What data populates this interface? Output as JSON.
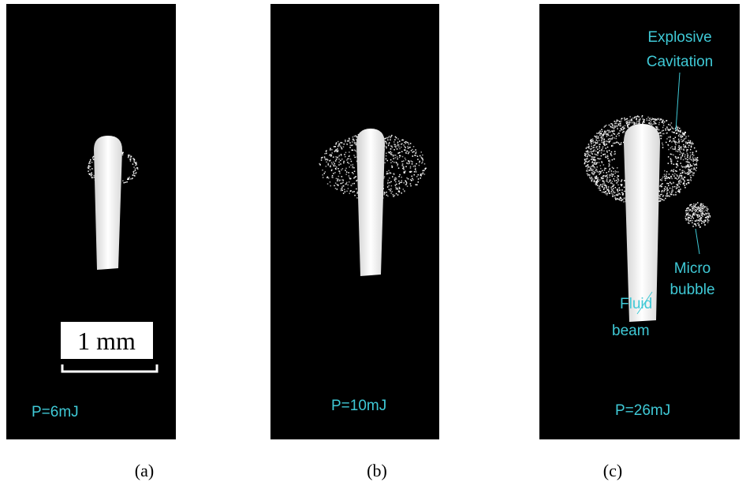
{
  "panels": [
    {
      "label": "P=6mJ",
      "caption": "(a)",
      "scale_bar": "1 mm"
    },
    {
      "label": "P=10mJ",
      "caption": "(b)"
    },
    {
      "label": "P=26mJ",
      "caption": "(c)",
      "annotations": {
        "cavitation": [
          "Explosive",
          "Cavitation"
        ],
        "bubble": [
          "Micro",
          "bubble"
        ],
        "beam": [
          "Fluid",
          "beam"
        ]
      }
    }
  ]
}
